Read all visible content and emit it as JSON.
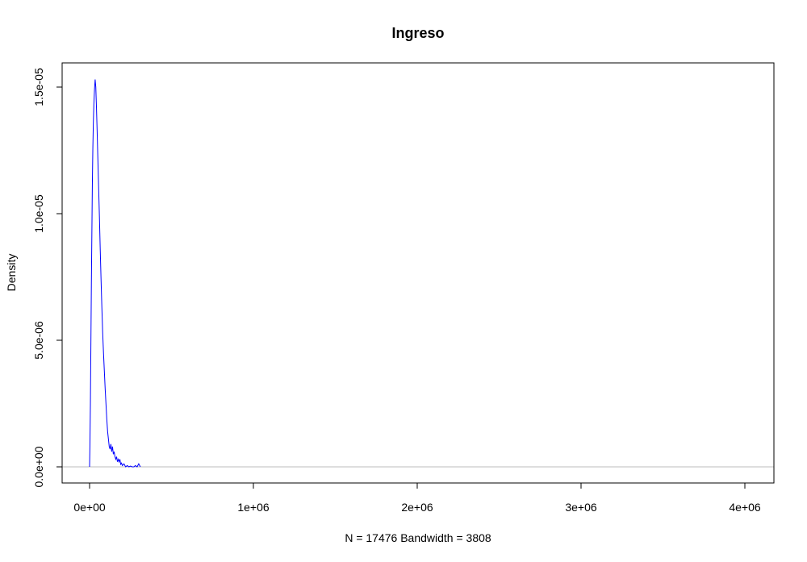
{
  "chart_data": {
    "type": "line",
    "title": "Ingreso",
    "xlabel": "N = 17476   Bandwidth = 3808",
    "ylabel": "Density",
    "xlim": [
      -100000,
      4180000
    ],
    "ylim": [
      -6e-07,
      1.55e-05
    ],
    "x_ticks": [
      {
        "value": 0,
        "label": "0e+00"
      },
      {
        "value": 1000000,
        "label": "1e+06"
      },
      {
        "value": 2000000,
        "label": "2e+06"
      },
      {
        "value": 3000000,
        "label": "3e+06"
      },
      {
        "value": 4000000,
        "label": "4e+06"
      }
    ],
    "y_ticks": [
      {
        "value": 0,
        "label": "0.0e+00"
      },
      {
        "value": 5e-06,
        "label": "5.0e-06"
      },
      {
        "value": 1e-05,
        "label": "1.0e-05"
      },
      {
        "value": 1.5e-05,
        "label": "1.5e-05"
      }
    ],
    "grid": false,
    "baseline": {
      "y": 0,
      "color": "#bebebe"
    },
    "series": [
      {
        "color": "#0000ff",
        "x": [
          -1,
          2000,
          5000,
          8000,
          11000,
          14000,
          17000,
          20000,
          23000,
          26000,
          30000,
          34000,
          38000,
          42000,
          46000,
          50000,
          55000,
          60000,
          65000,
          70000,
          75000,
          80000,
          85000,
          90000,
          95000,
          100000,
          105000,
          110000,
          115000,
          120000,
          125000,
          130000,
          135000,
          140000,
          145000,
          150000,
          155000,
          160000,
          165000,
          170000,
          175000,
          180000,
          185000,
          190000,
          195000,
          200000,
          210000,
          220000,
          230000,
          240000,
          250000,
          260000,
          270000,
          280000,
          290000,
          300000,
          310000
        ],
        "y": [
          0,
          8e-07,
          2.5e-06,
          4.8e-06,
          7.2e-06,
          9.2e-06,
          1.12e-05,
          1.26e-05,
          1.36e-05,
          1.43e-05,
          1.49e-05,
          1.53e-05,
          1.5e-05,
          1.42e-05,
          1.33e-05,
          1.23e-05,
          1.11e-05,
          9.9e-06,
          8.6e-06,
          7.4e-06,
          6.3e-06,
          5.3e-06,
          4.5e-06,
          3.8e-06,
          3.1e-06,
          2.5e-06,
          1.9e-06,
          1.4e-06,
          1.1e-06,
          8e-07,
          7e-07,
          9e-07,
          6e-07,
          8e-07,
          5e-07,
          6e-07,
          4e-07,
          3e-07,
          4e-07,
          2e-07,
          3e-07,
          2e-07,
          3e-07,
          1e-07,
          1.5e-07,
          5e-08,
          1.2e-07,
          0.0,
          5e-08,
          0.0,
          3e-08,
          0.0,
          0.0,
          5e-08,
          0.0,
          1.2e-07,
          0.0
        ]
      }
    ]
  }
}
